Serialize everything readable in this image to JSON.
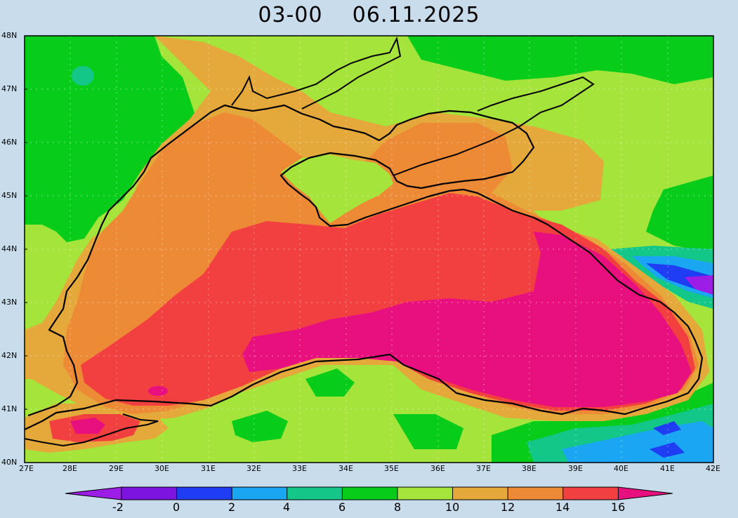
{
  "title": {
    "time": "03-00",
    "date": "06.11.2025"
  },
  "map": {
    "lat_labels": [
      "48N",
      "47N",
      "46N",
      "45N",
      "44N",
      "43N",
      "42N",
      "41N",
      "40N"
    ],
    "lon_labels": [
      "27E",
      "28E",
      "29E",
      "30E",
      "31E",
      "32E",
      "33E",
      "34E",
      "35E",
      "36E",
      "37E",
      "38E",
      "39E",
      "40E",
      "41E",
      "42E"
    ],
    "grid_lines": "dotted",
    "coastline_color": "#000000"
  },
  "colorbar": {
    "labels": [
      "-2",
      "0",
      "2",
      "4",
      "6",
      "8",
      "10",
      "12",
      "14",
      "16"
    ],
    "colors": [
      "#9b1de6",
      "#7d14e0",
      "#1f3df2",
      "#1aa6f2",
      "#12c788",
      "#08cc1a",
      "#a4e43b",
      "#e5a83a",
      "#ed8a36",
      "#f24040",
      "#e8107f",
      "#e83bd6"
    ]
  },
  "legend_colors": {
    "bg": "#c8dcec"
  }
}
